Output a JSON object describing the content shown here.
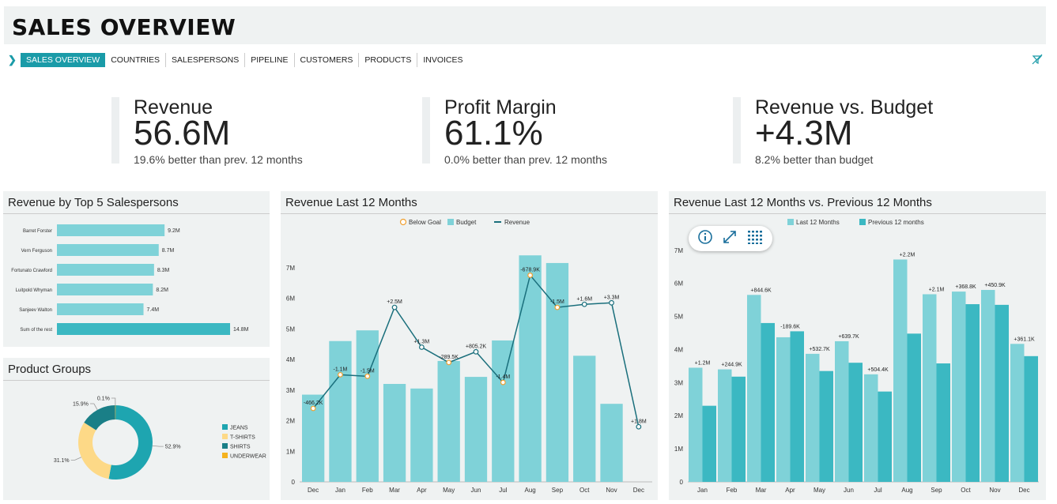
{
  "header": {
    "title": "SALES OVERVIEW"
  },
  "tabs": [
    {
      "label": "SALES OVERVIEW",
      "active": true
    },
    {
      "label": "COUNTRIES"
    },
    {
      "label": "SALESPERSONS"
    },
    {
      "label": "PIPELINE"
    },
    {
      "label": "CUSTOMERS"
    },
    {
      "label": "PRODUCTS"
    },
    {
      "label": "INVOICES"
    }
  ],
  "kpis": [
    {
      "title": "Revenue",
      "value": "56.6M",
      "sub": "19.6% better than prev. 12 months"
    },
    {
      "title": "Profit Margin",
      "value": "61.1%",
      "sub": "0.0% better than prev. 12 months"
    },
    {
      "title": "Revenue vs. Budget",
      "value": "+4.3M",
      "sub": "8.2% better than budget"
    }
  ],
  "panels": {
    "salespersons": "Revenue by Top 5 Salespersons",
    "product_groups": "Product Groups",
    "rev12": "Revenue Last 12 Months",
    "rev_vs_prev": "Revenue Last 12 Months vs. Previous 12 Months"
  },
  "colors": {
    "accent": "#1a9ba8",
    "bar_light": "#7fd2d8",
    "bar_dark": "#3bb8c2",
    "line": "#1a6f7c",
    "goal": "#f0a030"
  },
  "chart_data": [
    {
      "type": "bar",
      "orientation": "horizontal",
      "title": "Revenue by Top 5 Salespersons",
      "categories": [
        "Barret Forster",
        "Vern Ferguson",
        "Fortunato Crawford",
        "Luitpold Whyman",
        "Sanjeev Walton",
        "Sum of the rest"
      ],
      "values": [
        9.2,
        8.7,
        8.3,
        8.2,
        7.4,
        14.8
      ],
      "labels": [
        "9.2M",
        "8.7M",
        "8.3M",
        "8.2M",
        "7.4M",
        "14.8M"
      ]
    },
    {
      "type": "pie",
      "title": "Product Groups",
      "donut": true,
      "categories": [
        "JEANS",
        "T-SHIRTS",
        "SHIRTS",
        "UNDERWEAR"
      ],
      "values": [
        52.9,
        31.1,
        15.9,
        0.1
      ],
      "labels": [
        "52.9%",
        "31.1%",
        "15.9%",
        "0.1%"
      ],
      "colors": [
        "#1ea5b0",
        "#fdd987",
        "#1a7f87",
        "#f5b21e"
      ],
      "legend": "right"
    },
    {
      "type": "bar",
      "title": "Revenue Last 12 Months",
      "legend_entries": [
        "Below Goal",
        "Budget",
        "Revenue"
      ],
      "legend": "top",
      "categories": [
        "Dec",
        "Jan",
        "Feb",
        "Mar",
        "Apr",
        "May",
        "Jun",
        "Jul",
        "Aug",
        "Sep",
        "Oct",
        "Nov",
        "Dec"
      ],
      "series": [
        {
          "name": "Budget",
          "type": "bar",
          "values": [
            2.85,
            4.6,
            4.95,
            3.2,
            3.05,
            3.95,
            3.43,
            4.62,
            7.4,
            7.15,
            4.12,
            2.55,
            null
          ]
        },
        {
          "name": "Revenue",
          "type": "line",
          "values": [
            2.4,
            3.5,
            3.45,
            5.7,
            4.4,
            3.9,
            4.25,
            3.25,
            6.75,
            5.7,
            5.8,
            5.85,
            1.8
          ],
          "below_goal": [
            true,
            true,
            true,
            false,
            false,
            true,
            false,
            true,
            true,
            true,
            false,
            false,
            false
          ]
        }
      ],
      "data_labels": [
        "-466.2K",
        "-1.1M",
        "-1.5M",
        "+2.5M",
        "+1.3M",
        "-289.5K",
        "+805.2K",
        "-1.4M",
        "-678.9K",
        "-1.5M",
        "+1.6M",
        "+3.3M",
        "+1.8M"
      ],
      "yticks": [
        "0",
        "1M",
        "2M",
        "3M",
        "4M",
        "5M",
        "6M",
        "7M"
      ],
      "ylim": [
        0,
        8
      ]
    },
    {
      "type": "bar",
      "title": "Revenue Last 12 Months vs. Previous 12 Months",
      "legend": "top",
      "categories": [
        "Jan",
        "Feb",
        "Mar",
        "Apr",
        "May",
        "Jun",
        "Jul",
        "Aug",
        "Sep",
        "Oct",
        "Nov",
        "Dec"
      ],
      "series": [
        {
          "name": "Last 12 Months",
          "values": [
            3.45,
            3.4,
            5.65,
            4.37,
            3.87,
            4.25,
            3.25,
            6.72,
            5.67,
            5.75,
            5.8,
            4.17
          ]
        },
        {
          "name": "Previous 12 months",
          "values": [
            2.3,
            3.18,
            4.8,
            4.55,
            3.35,
            3.6,
            2.73,
            4.48,
            3.58,
            5.37,
            5.35,
            3.8
          ]
        }
      ],
      "data_labels": [
        "+1.2M",
        "+244.9K",
        "+844.6K",
        "-189.6K",
        "+532.7K",
        "+639.7K",
        "+504.4K",
        "+2.2M",
        "+2.1M",
        "+368.8K",
        "+450.9K",
        "+361.1K"
      ],
      "yticks": [
        "0",
        "1M",
        "2M",
        "3M",
        "4M",
        "5M",
        "6M",
        "7M"
      ],
      "ylim": [
        0,
        7.4
      ]
    }
  ]
}
